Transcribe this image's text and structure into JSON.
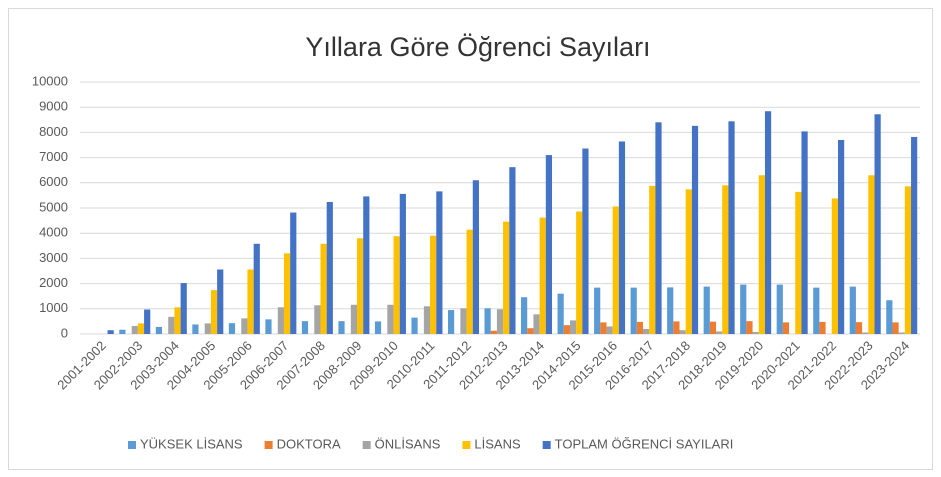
{
  "chart_data": {
    "type": "bar",
    "title": "Yıllara Göre Öğrenci Sayıları",
    "categories": [
      "2001-2002",
      "2002-2003",
      "2003-2004",
      "2004-2005",
      "2005-2006",
      "2006-2007",
      "2007-2008",
      "2008-2009",
      "2009-2010",
      "2010-2011",
      "2011-2012",
      "2012-2013",
      "2013-2014",
      "2014-2015",
      "2015-2016",
      "2016-2017",
      "2017-2018",
      "2018-2019",
      "2019-2020",
      "2020-2021",
      "2021-2022",
      "2022-2023",
      "2023-2024"
    ],
    "series": [
      {
        "name": "YÜKSEK LİSANS",
        "color": "#5b9bd5",
        "values": [
          0,
          170,
          280,
          380,
          430,
          580,
          510,
          510,
          500,
          650,
          950,
          1020,
          1460,
          1600,
          1840,
          1840,
          1850,
          1880,
          1960,
          1960,
          1840,
          1880,
          1340
        ]
      },
      {
        "name": "DOKTORA",
        "color": "#ed7d31",
        "values": [
          0,
          0,
          0,
          0,
          0,
          0,
          0,
          0,
          0,
          0,
          0,
          130,
          230,
          350,
          460,
          480,
          500,
          490,
          510,
          460,
          480,
          470,
          460
        ]
      },
      {
        "name": "ÖNLİSANS",
        "color": "#a5a5a5",
        "values": [
          0,
          320,
          680,
          420,
          620,
          1060,
          1140,
          1160,
          1160,
          1100,
          1020,
          980,
          780,
          540,
          300,
          200,
          150,
          100,
          80,
          0,
          0,
          60,
          60
        ]
      },
      {
        "name": "LİSANS",
        "color": "#ffc000",
        "values": [
          0,
          420,
          1060,
          1740,
          2560,
          3200,
          3580,
          3800,
          3880,
          3900,
          4140,
          4460,
          4620,
          4860,
          5060,
          5880,
          5740,
          5900,
          6300,
          5640,
          5380,
          6300,
          5860
        ]
      },
      {
        "name": "TOPLAM ÖĞRENCİ SAYILARI",
        "color": "#4472c4",
        "values": [
          150,
          970,
          2020,
          2560,
          3580,
          4820,
          5240,
          5460,
          5560,
          5660,
          6100,
          6620,
          7100,
          7360,
          7640,
          8400,
          8260,
          8440,
          8840,
          8040,
          7700,
          8720,
          7820
        ]
      }
    ],
    "ylim": [
      0,
      10000
    ],
    "yticks": [
      0,
      1000,
      2000,
      3000,
      4000,
      5000,
      6000,
      7000,
      8000,
      9000,
      10000
    ],
    "grid": true,
    "legend": "bottom"
  }
}
